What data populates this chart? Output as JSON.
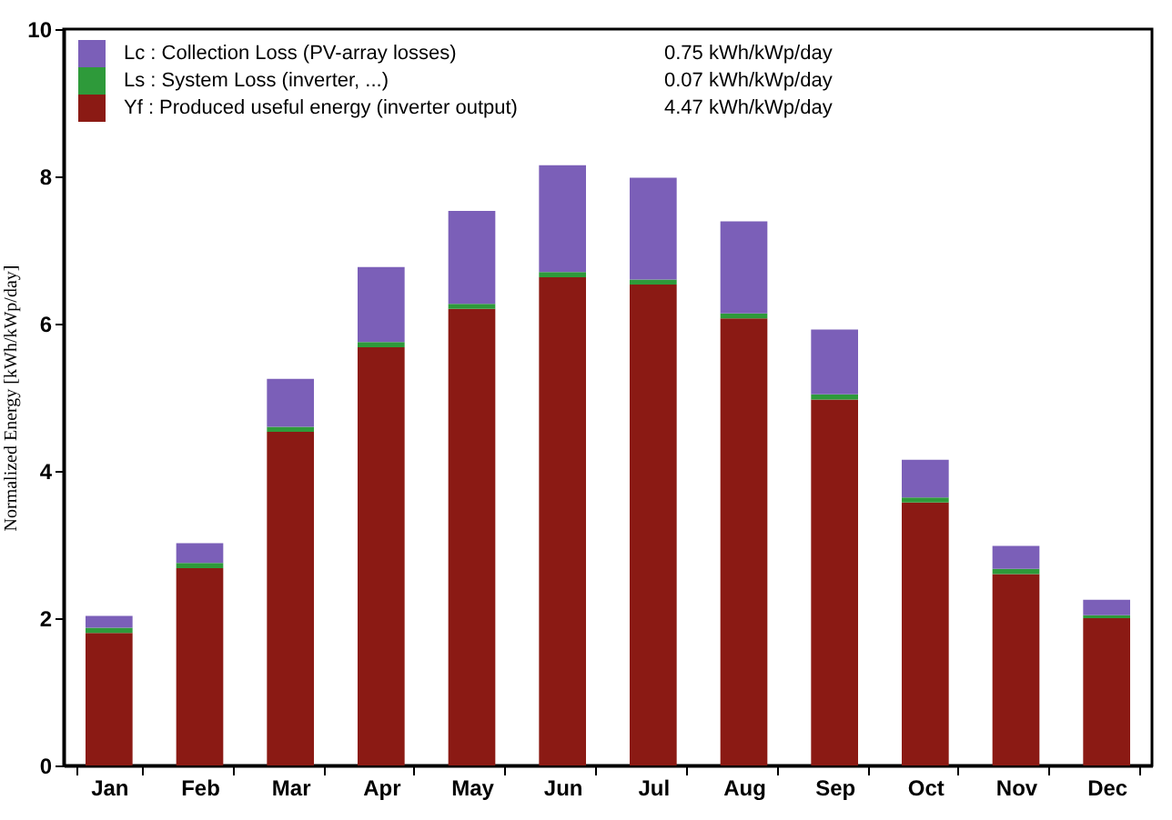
{
  "chart_data": {
    "type": "bar",
    "stacked": true,
    "ylabel": "Normalized Energy [kWh/kWp/day]",
    "categories": [
      "Jan",
      "Feb",
      "Mar",
      "Apr",
      "May",
      "Jun",
      "Jul",
      "Aug",
      "Sep",
      "Oct",
      "Nov",
      "Dec"
    ],
    "series": [
      {
        "name": "Yf : Produced useful energy  (inverter output)",
        "color": "#8b1a14",
        "values": [
          1.8,
          2.68,
          4.53,
          5.68,
          6.2,
          6.63,
          6.53,
          6.07,
          4.97,
          3.57,
          2.6,
          2.0
        ]
      },
      {
        "name": "Ls : System Loss  (inverter, ...)",
        "color": "#2e9a3a",
        "values": [
          0.07,
          0.07,
          0.07,
          0.07,
          0.07,
          0.07,
          0.07,
          0.07,
          0.07,
          0.07,
          0.07,
          0.04
        ]
      },
      {
        "name": "Lc : Collection Loss (PV-array losses)",
        "color": "#7b5fb8",
        "values": [
          0.16,
          0.27,
          0.65,
          1.02,
          1.26,
          1.45,
          1.38,
          1.25,
          0.88,
          0.51,
          0.31,
          0.21
        ]
      }
    ],
    "annotations": [
      "0.75 kWh/kWp/day",
      "0.07 kWh/kWp/day",
      "4.47 kWh/kWp/day"
    ],
    "ylim": [
      0,
      10
    ],
    "yticks": [
      0,
      2,
      4,
      6,
      8,
      10
    ],
    "grid": false,
    "legend": "top left"
  }
}
